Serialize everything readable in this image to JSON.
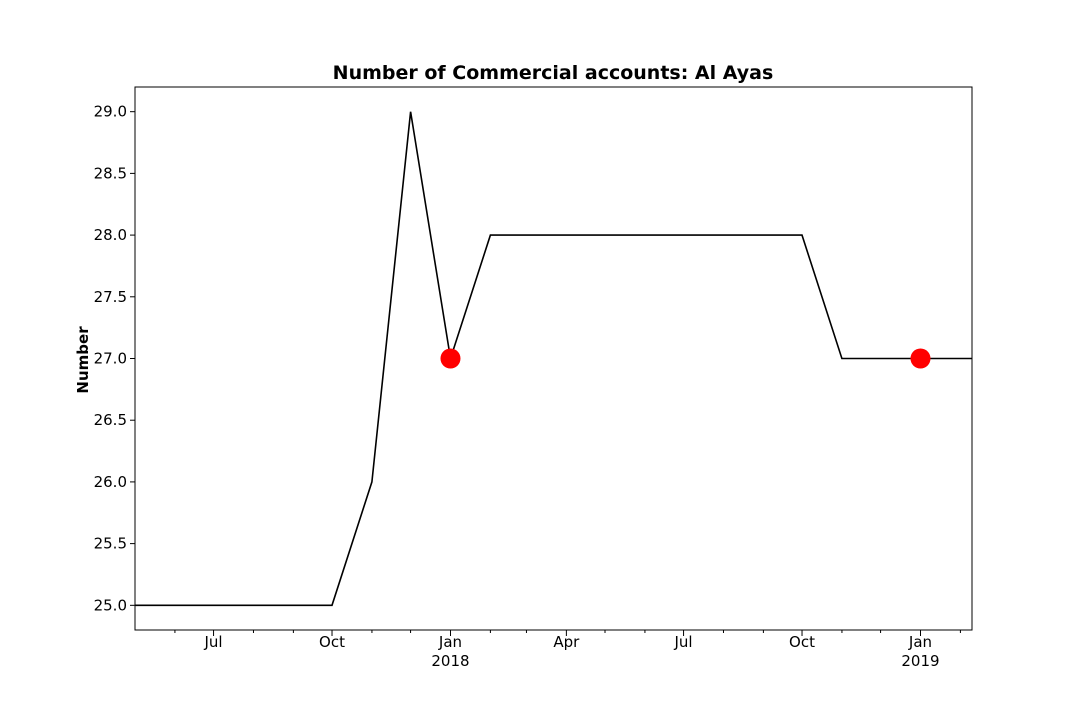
{
  "chart_data": {
    "type": "line",
    "title": "Number of Commercial accounts: Al Ayas",
    "xlabel": "",
    "ylabel": "Number",
    "ylim": [
      24.8,
      29.2
    ],
    "xlim": [
      "2017-05-01",
      "2019-02-10"
    ],
    "yticks": [
      {
        "value": 25.0,
        "label": "25.0"
      },
      {
        "value": 25.5,
        "label": "25.5"
      },
      {
        "value": 26.0,
        "label": "26.0"
      },
      {
        "value": 26.5,
        "label": "26.5"
      },
      {
        "value": 27.0,
        "label": "27.0"
      },
      {
        "value": 27.5,
        "label": "27.5"
      },
      {
        "value": 28.0,
        "label": "28.0"
      },
      {
        "value": 28.5,
        "label": "28.5"
      },
      {
        "value": 29.0,
        "label": "29.0"
      }
    ],
    "xticks": [
      {
        "date": "2017-07-01",
        "label": "Jul",
        "sublabel": ""
      },
      {
        "date": "2017-10-01",
        "label": "Oct",
        "sublabel": ""
      },
      {
        "date": "2018-01-01",
        "label": "Jan",
        "sublabel": "2018"
      },
      {
        "date": "2018-04-01",
        "label": "Apr",
        "sublabel": ""
      },
      {
        "date": "2018-07-01",
        "label": "Jul",
        "sublabel": ""
      },
      {
        "date": "2018-10-01",
        "label": "Oct",
        "sublabel": ""
      },
      {
        "date": "2019-01-01",
        "label": "Jan",
        "sublabel": "2019"
      }
    ],
    "minor_xticks": [
      "2017-06-01",
      "2017-08-01",
      "2017-09-01",
      "2017-11-01",
      "2017-12-01",
      "2018-02-01",
      "2018-03-01",
      "2018-05-01",
      "2018-06-01",
      "2018-08-01",
      "2018-09-01",
      "2018-11-01",
      "2018-12-01",
      "2019-02-01"
    ],
    "series": [
      {
        "color": "#000000",
        "points": [
          {
            "x": "2017-05-01",
            "y": 25
          },
          {
            "x": "2017-06-01",
            "y": 25
          },
          {
            "x": "2017-07-01",
            "y": 25
          },
          {
            "x": "2017-08-01",
            "y": 25
          },
          {
            "x": "2017-09-01",
            "y": 25
          },
          {
            "x": "2017-10-01",
            "y": 25
          },
          {
            "x": "2017-11-01",
            "y": 26
          },
          {
            "x": "2017-12-01",
            "y": 29
          },
          {
            "x": "2018-01-01",
            "y": 27
          },
          {
            "x": "2018-02-01",
            "y": 28
          },
          {
            "x": "2018-03-01",
            "y": 28
          },
          {
            "x": "2018-04-01",
            "y": 28
          },
          {
            "x": "2018-05-01",
            "y": 28
          },
          {
            "x": "2018-06-01",
            "y": 28
          },
          {
            "x": "2018-07-01",
            "y": 28
          },
          {
            "x": "2018-08-01",
            "y": 28
          },
          {
            "x": "2018-09-01",
            "y": 28
          },
          {
            "x": "2018-10-01",
            "y": 28
          },
          {
            "x": "2018-11-01",
            "y": 27
          },
          {
            "x": "2018-12-01",
            "y": 27
          },
          {
            "x": "2019-01-01",
            "y": 27
          },
          {
            "x": "2019-02-01",
            "y": 27
          },
          {
            "x": "2019-02-10",
            "y": 27
          }
        ]
      }
    ],
    "highlights": [
      {
        "x": "2018-01-01",
        "y": 27,
        "color": "#ff0000"
      },
      {
        "x": "2019-01-01",
        "y": 27,
        "color": "#ff0000"
      }
    ],
    "grid": false,
    "legend": "none"
  }
}
